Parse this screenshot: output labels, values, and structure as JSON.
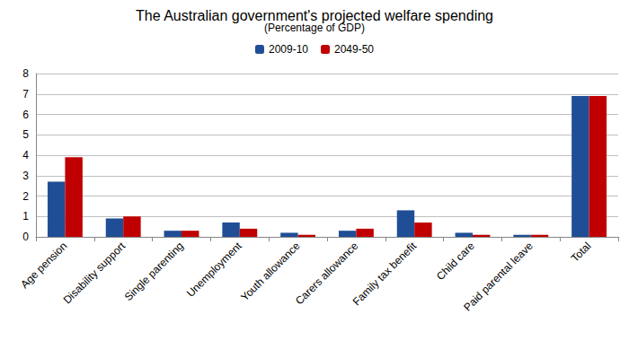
{
  "chart_data": {
    "type": "bar",
    "title": "The Australian government's projected welfare spending",
    "subtitle": "(Percentage of GDP)",
    "categories": [
      "Age pension",
      "Disability support",
      "Single parenting",
      "Unemployment",
      "Youth allowance",
      "Carers allowance",
      "Family tax benefit",
      "Child care",
      "Paid parental leave",
      "Total"
    ],
    "series": [
      {
        "name": "2009-10",
        "color": "#1f4e96",
        "values": [
          2.7,
          0.9,
          0.3,
          0.7,
          0.2,
          0.3,
          1.3,
          0.2,
          0.1,
          6.9
        ]
      },
      {
        "name": "2049-50",
        "color": "#c00000",
        "values": [
          3.9,
          1.0,
          0.3,
          0.4,
          0.1,
          0.4,
          0.7,
          0.1,
          0.1,
          6.9
        ]
      }
    ],
    "ylim": [
      0,
      8
    ],
    "yticks": [
      0,
      1,
      2,
      3,
      4,
      5,
      6,
      7,
      8
    ],
    "grid": true,
    "legend": "top"
  }
}
